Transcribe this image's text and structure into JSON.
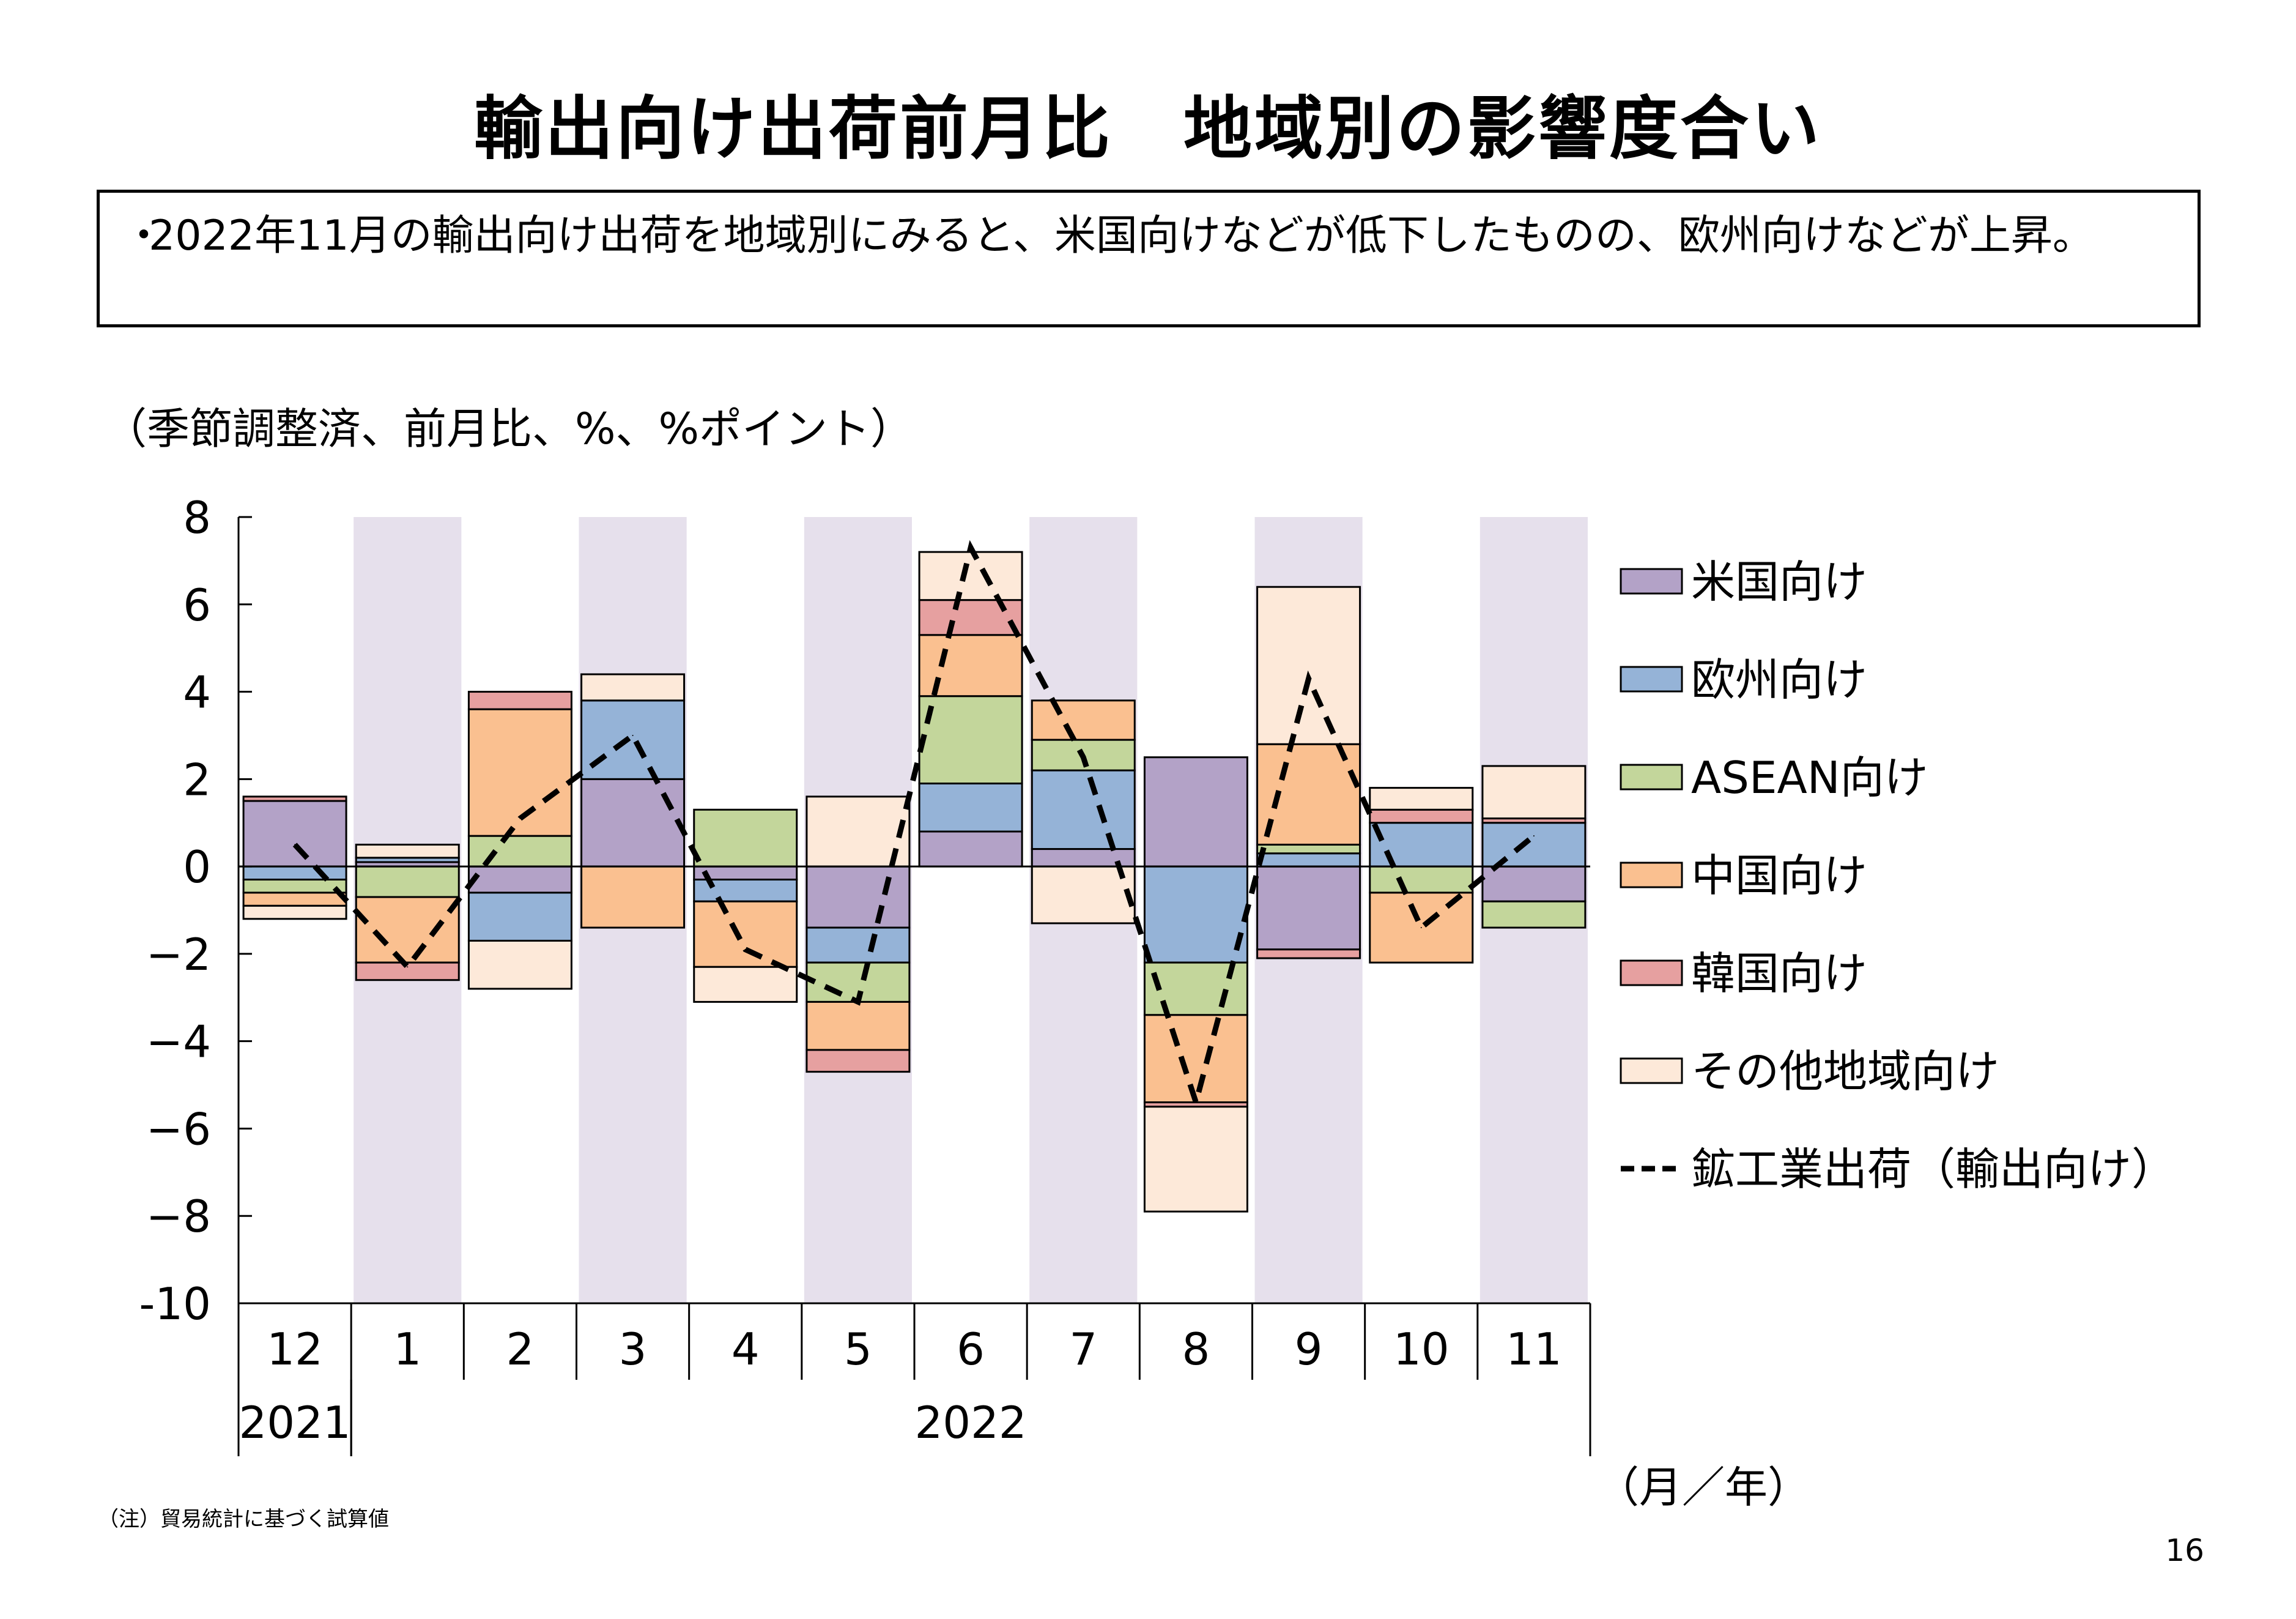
{
  "title": "輸出向け出荷前月比　地域別の影響度合い",
  "summary": {
    "bullet": "・",
    "text": "2022年11月の輸出向け出荷を地域別にみると、米国向けなどが低下したものの、欧州向けなどが上昇。"
  },
  "unit_label": "（季節調整済、前月比、%、%ポイント）",
  "x_axis_unit": "（月／年）",
  "note": "（注）貿易統計に基づく試算値",
  "page_number": "16",
  "colors": {
    "us": "#b3a2c7",
    "europe": "#95b3d7",
    "asean": "#c3d69b",
    "china": "#fac090",
    "korea": "#e6a0a0",
    "other": "#fde9d9",
    "shade": "#e6e0ec"
  },
  "chart_data": {
    "type": "bar",
    "stacked": true,
    "categories": [
      "12",
      "1",
      "2",
      "3",
      "4",
      "5",
      "6",
      "7",
      "8",
      "9",
      "10",
      "11"
    ],
    "years": [
      {
        "label": "2021",
        "from": 0,
        "to": 0
      },
      {
        "label": "2022",
        "from": 1,
        "to": 11
      }
    ],
    "ylim": [
      -10,
      8
    ],
    "yticks": [
      8,
      6,
      4,
      2,
      0,
      -2,
      -4,
      -6,
      -8,
      -10
    ],
    "ytick_labels": [
      "8",
      "6",
      "4",
      "2",
      "0",
      "−2",
      "−4",
      "−6",
      "−8",
      "-10"
    ],
    "shaded_categories": [
      1,
      3,
      5,
      7,
      9,
      11
    ],
    "series": [
      {
        "name": "米国向け",
        "key": "us",
        "values": [
          1.5,
          0.1,
          -0.6,
          2.0,
          -0.3,
          -1.4,
          0.8,
          0.4,
          2.5,
          -1.9,
          0.0,
          -0.8
        ]
      },
      {
        "name": "欧州向け",
        "key": "europe",
        "values": [
          -0.3,
          0.1,
          -1.1,
          1.8,
          -0.5,
          -0.8,
          1.1,
          1.8,
          -2.2,
          0.3,
          1.0,
          1.0
        ]
      },
      {
        "name": "ASEAN向け",
        "key": "asean",
        "values": [
          -0.3,
          -0.7,
          0.7,
          0.0,
          1.3,
          -0.9,
          2.0,
          0.7,
          -1.2,
          0.2,
          -0.6,
          -0.6
        ]
      },
      {
        "name": "中国向け",
        "key": "china",
        "values": [
          -0.3,
          -1.5,
          2.9,
          -1.4,
          -1.5,
          -1.1,
          1.4,
          0.9,
          -2.0,
          2.3,
          -1.6,
          0.0
        ]
      },
      {
        "name": "韓国向け",
        "key": "korea",
        "values": [
          0.1,
          -0.4,
          0.4,
          0.0,
          0.0,
          -0.5,
          0.8,
          0.0,
          -0.1,
          -0.2,
          0.3,
          0.1
        ]
      },
      {
        "name": "その他地域向け",
        "key": "other",
        "values": [
          -0.3,
          0.3,
          -1.1,
          0.6,
          -0.8,
          1.6,
          1.1,
          -1.3,
          -2.4,
          3.6,
          0.5,
          1.2
        ]
      }
    ],
    "line": {
      "name": "鉱工業出荷（輸出向け）",
      "values": [
        0.5,
        -2.3,
        1.1,
        3.0,
        -1.9,
        -3.1,
        7.3,
        2.5,
        -5.4,
        4.3,
        -1.4,
        0.7
      ]
    },
    "legend_placement": "right"
  }
}
